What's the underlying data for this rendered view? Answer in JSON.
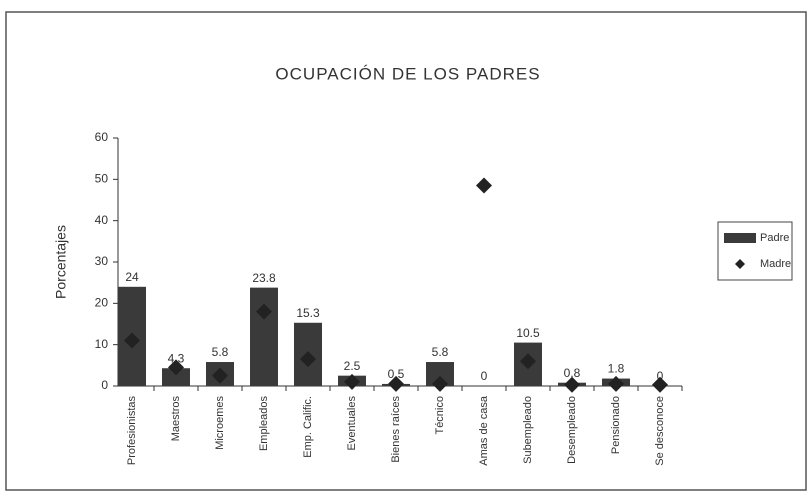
{
  "chart_data": {
    "type": "bar",
    "title": "OCUPACIÓN DE LOS PADRES",
    "y_label": "Porcentajes",
    "categories": [
      "Profesionistas",
      "Maestros",
      "Microemes",
      "Empleados",
      "Emp. Calific.",
      "Eventuales",
      "Bienes raíces",
      "Técnico",
      "Amas de casa",
      "Subempleado",
      "Desempleado",
      "Pensionado",
      "Se desconoce"
    ],
    "series": [
      {
        "name": "Padre",
        "type": "bar",
        "color": "#3a3a3a",
        "values": [
          24,
          4.3,
          5.8,
          23.8,
          15.3,
          2.5,
          0.5,
          5.8,
          0,
          10.5,
          0.8,
          1.8,
          0
        ]
      },
      {
        "name": "Madre",
        "type": "scatter",
        "color": "#222222",
        "values": [
          11,
          4.5,
          2.5,
          18,
          6.5,
          1,
          0.5,
          0.5,
          48.5,
          6,
          0.3,
          0.5,
          0.3
        ]
      }
    ],
    "ylim": [
      0,
      60
    ],
    "yticks": [
      0,
      10,
      20,
      30,
      40,
      50,
      60
    ],
    "legend": "right",
    "data_labels": "Padre"
  }
}
